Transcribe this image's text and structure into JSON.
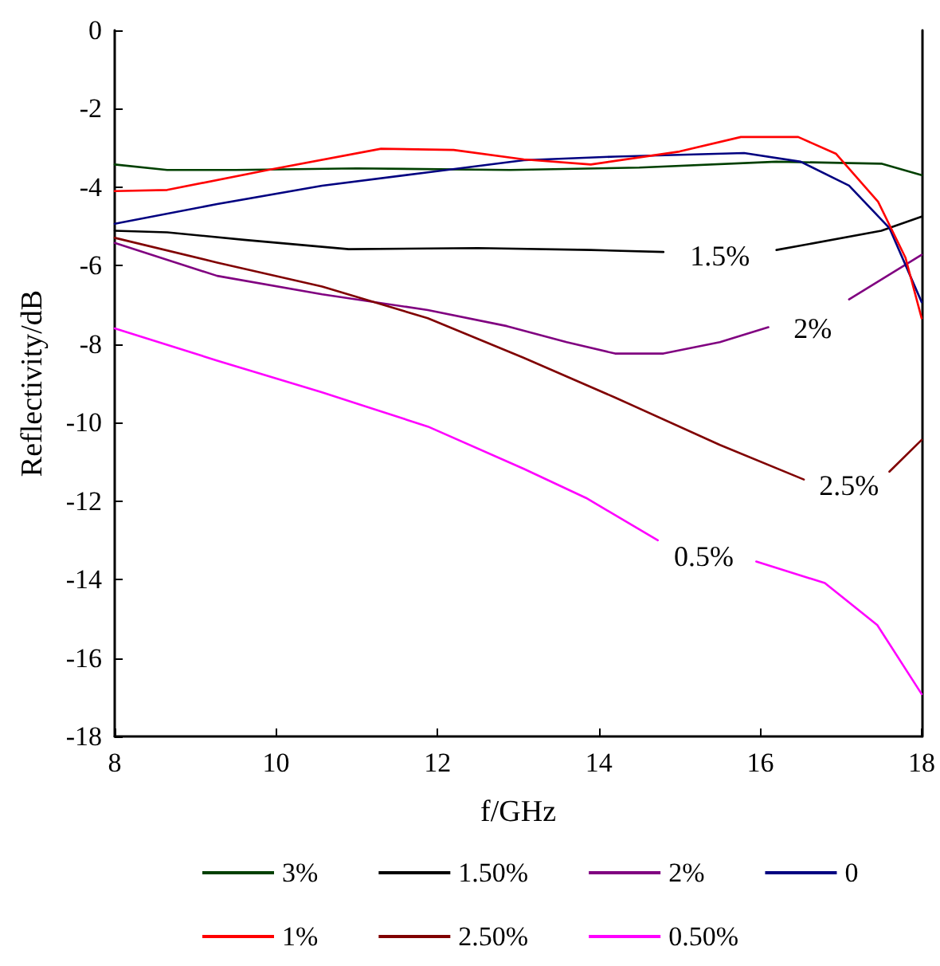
{
  "chart_data": {
    "type": "line",
    "xlabel": "f/GHz",
    "ylabel": "Reflectivity/dB",
    "xlim": [
      8,
      18
    ],
    "xticks": [
      8,
      10,
      12,
      14,
      16,
      18
    ],
    "ylim": [
      -18,
      0
    ],
    "yticks": [
      -18,
      -16,
      -14,
      -12,
      -10,
      -8,
      -6,
      -4,
      -2,
      0
    ],
    "grid": false,
    "legend": "bottom",
    "marker": "none",
    "line_style": "solid",
    "annotations": [
      {
        "text": "1.5%",
        "x": 15.5,
        "y": -5.75
      },
      {
        "text": "2%",
        "x": 16.65,
        "y": -7.6
      },
      {
        "text": "2.5%",
        "x": 17.1,
        "y": -11.6
      },
      {
        "text": "0.5%",
        "x": 15.3,
        "y": -13.4
      }
    ],
    "series": [
      {
        "name": "3%",
        "color": "#004000",
        "x": [
          8,
          8.65,
          9.5,
          11,
          12.9,
          14.5,
          16.2,
          17.5,
          18
        ],
        "values": [
          -3.42,
          -3.56,
          -3.56,
          -3.52,
          -3.56,
          -3.5,
          -3.35,
          -3.4,
          -3.69
        ]
      },
      {
        "name": "1.50%",
        "color": "#000000",
        "x": [
          8,
          8.65,
          9.6,
          10.9,
          12.5,
          13.9,
          14.8,
          14.95,
          16.1,
          16.2,
          17.5,
          18
        ],
        "values": [
          -5.11,
          -5.15,
          -5.34,
          -5.58,
          -5.55,
          -5.6,
          -5.65,
          null,
          null,
          -5.6,
          -5.11,
          -4.75
        ]
      },
      {
        "name": "2%",
        "color": "#800080",
        "x": [
          8,
          9.27,
          10.57,
          11.88,
          12.86,
          13.6,
          14.2,
          14.8,
          15.5,
          16.1,
          16.6,
          17.1,
          18
        ],
        "values": [
          -5.42,
          -6.26,
          -6.73,
          -7.13,
          -7.54,
          -7.95,
          -8.24,
          -8.24,
          -7.95,
          -7.57,
          null,
          -6.86,
          -5.72
        ]
      },
      {
        "name": "0",
        "color": "#000080",
        "x": [
          8,
          9.27,
          10.57,
          11.88,
          13.07,
          14.2,
          15.8,
          16.5,
          17.1,
          17.6,
          18
        ],
        "values": [
          -4.93,
          -4.43,
          -3.96,
          -3.62,
          -3.31,
          -3.22,
          -3.13,
          -3.35,
          -3.96,
          -5.04,
          -6.93
        ]
      },
      {
        "name": "1%",
        "color": "#ff0000",
        "x": [
          8,
          8.65,
          9.9,
          11.3,
          12.2,
          13.07,
          13.9,
          15,
          15.76,
          16.47,
          16.94,
          17.46,
          17.8,
          18
        ],
        "values": [
          -4.1,
          -4.07,
          -3.56,
          -3.02,
          -3.05,
          -3.29,
          -3.42,
          -3.09,
          -2.72,
          -2.72,
          -3.15,
          -4.37,
          -5.8,
          -7.34
        ]
      },
      {
        "name": "2.50%",
        "color": "#800000",
        "x": [
          8,
          9.27,
          10.57,
          11.88,
          13.07,
          14.2,
          15.5,
          16.54,
          17.1,
          17.6,
          18
        ],
        "values": [
          -5.29,
          -5.92,
          -6.53,
          -7.34,
          -8.35,
          -9.36,
          -10.57,
          -11.45,
          null,
          -11.25,
          -10.44
        ]
      },
      {
        "name": "0.50%",
        "color": "#ff00ff",
        "x": [
          8,
          9.27,
          10.57,
          11.88,
          13.07,
          13.84,
          14.73,
          15.3,
          15.95,
          16.8,
          17.45,
          18
        ],
        "values": [
          -7.6,
          -8.42,
          -9.23,
          -10.1,
          -11.18,
          -11.92,
          -13,
          null,
          -13.54,
          -14.09,
          -15.16,
          -16.92
        ]
      }
    ]
  }
}
